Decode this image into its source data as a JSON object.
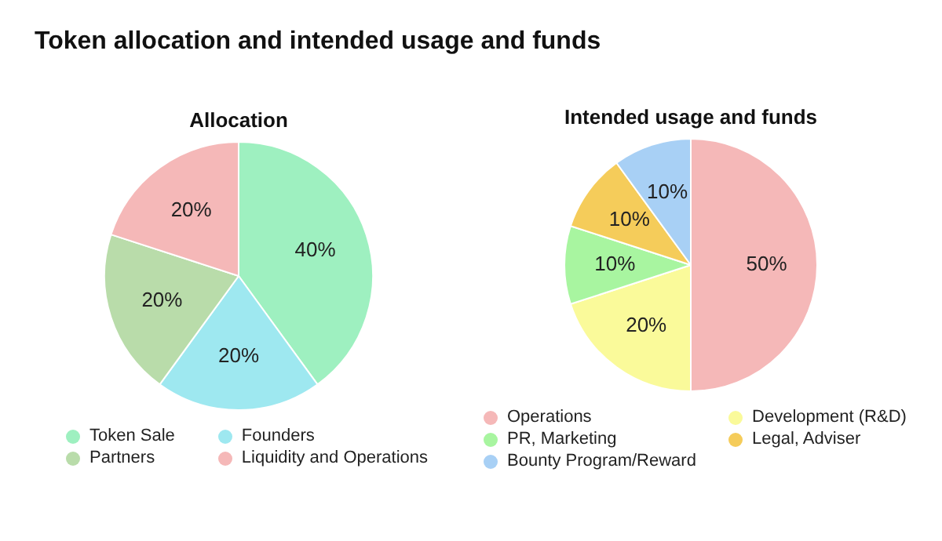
{
  "chart_data": [
    {
      "type": "pie",
      "title": "Allocation",
      "annotations": [
        "Token allocation and intended usage and funds"
      ],
      "categories": [
        "Token Sale",
        "Founders",
        "Partners",
        "Liquidity and Operations"
      ],
      "values": [
        40,
        20,
        20,
        20
      ],
      "value_labels": [
        "40%",
        "20%",
        "20%",
        "20%"
      ],
      "colors": [
        "#9ef0c0",
        "#9ee8f0",
        "#b9dcaa",
        "#f5b8b8"
      ],
      "legend": "bottom"
    },
    {
      "type": "pie",
      "title": "Intended usage and funds",
      "categories": [
        "Operations",
        "Development (R&D)",
        "PR, Marketing",
        "Legal, Adviser",
        "Bounty Program/Reward"
      ],
      "values": [
        50,
        20,
        10,
        10,
        10
      ],
      "value_labels": [
        "50%",
        "20%",
        "10%",
        "10%",
        "10%"
      ],
      "colors": [
        "#f5b8b8",
        "#fafa9a",
        "#a8f5a0",
        "#f5cc5a",
        "#a8d0f5"
      ],
      "legend": "bottom"
    }
  ]
}
